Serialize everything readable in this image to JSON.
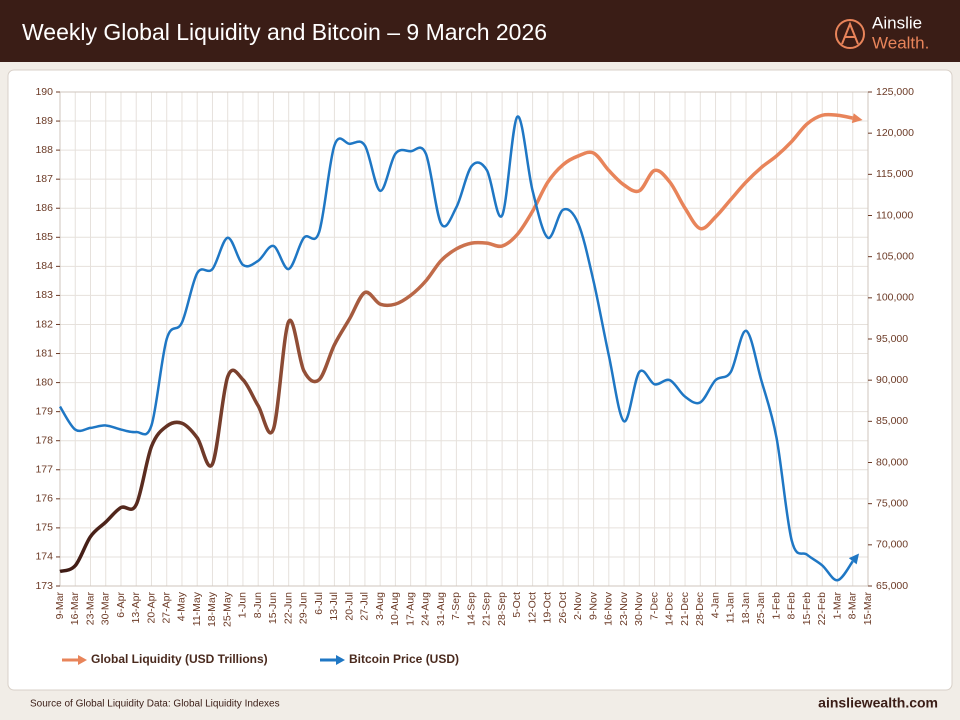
{
  "header": {
    "title": "Weekly Global Liquidity and Bitcoin – 9 March 2026",
    "logo_top": "Ainslie",
    "logo_bottom": "Wealth."
  },
  "footer": {
    "source": "Source of Global Liquidity Data: Global Liquidity Indexes",
    "site": "ainsliewealth.com"
  },
  "chart_data": {
    "type": "line",
    "categories": [
      "9-Mar",
      "16-Mar",
      "23-Mar",
      "30-Mar",
      "6-Apr",
      "13-Apr",
      "20-Apr",
      "27-Apr",
      "4-May",
      "11-May",
      "18-May",
      "25-May",
      "1-Jun",
      "8-Jun",
      "15-Jun",
      "22-Jun",
      "29-Jun",
      "6-Jul",
      "13-Jul",
      "20-Jul",
      "27-Jul",
      "3-Aug",
      "10-Aug",
      "17-Aug",
      "24-Aug",
      "31-Aug",
      "7-Sep",
      "14-Sep",
      "21-Sep",
      "28-Sep",
      "5-Oct",
      "12-Oct",
      "19-Oct",
      "26-Oct",
      "2-Nov",
      "9-Nov",
      "16-Nov",
      "23-Nov",
      "30-Nov",
      "7-Dec",
      "14-Dec",
      "21-Dec",
      "28-Dec",
      "4-Jan",
      "11-Jan",
      "18-Jan",
      "25-Jan",
      "1-Feb",
      "8-Feb",
      "15-Feb",
      "22-Feb",
      "1-Mar",
      "8-Mar",
      "15-Mar"
    ],
    "series": [
      {
        "name": "Global Liquidity (USD Trillions)",
        "color": "#e8845a",
        "start_color": "#3d1a14",
        "axis": "y",
        "values": [
          173.5,
          173.7,
          174.7,
          175.2,
          175.7,
          175.8,
          177.8,
          178.5,
          178.6,
          178.1,
          177.2,
          180.2,
          180.1,
          179.2,
          178.4,
          182.1,
          180.4,
          180.1,
          181.3,
          182.2,
          183.1,
          182.7,
          182.7,
          183.0,
          183.5,
          184.2,
          184.6,
          184.8,
          184.8,
          184.7,
          185.1,
          185.9,
          186.9,
          187.5,
          187.8,
          187.9,
          187.3,
          186.8,
          186.6,
          187.3,
          186.9,
          186.0,
          185.3,
          185.7,
          186.3,
          186.9,
          187.4,
          187.8,
          188.3,
          188.9,
          189.2,
          189.2,
          189.1,
          null
        ]
      },
      {
        "name": "Bitcoin Price (USD)",
        "color": "#1f77c4",
        "axis": "y2",
        "values": [
          86800,
          84000,
          84200,
          84500,
          84000,
          83700,
          84500,
          95000,
          97000,
          103000,
          103500,
          107300,
          104000,
          104500,
          106300,
          103500,
          107300,
          108000,
          118500,
          118700,
          118500,
          113000,
          117500,
          117800,
          117500,
          109000,
          111000,
          116000,
          115500,
          110000,
          122000,
          113000,
          107300,
          110700,
          109000,
          102000,
          93000,
          85000,
          91000,
          89500,
          90000,
          88000,
          87300,
          90000,
          91000,
          96000,
          90000,
          83000,
          70500,
          68800,
          67500,
          65700,
          68000,
          null
        ]
      }
    ],
    "ylim": [
      173,
      190
    ],
    "yticks": [
      173,
      174,
      175,
      176,
      177,
      178,
      179,
      180,
      181,
      182,
      183,
      184,
      185,
      186,
      187,
      188,
      189,
      190
    ],
    "y2lim": [
      65000,
      125000
    ],
    "y2ticks": [
      {
        "value": 65000,
        "label": "65,000"
      },
      {
        "value": 70000,
        "label": "70,000"
      },
      {
        "value": 75000,
        "label": "75,000"
      },
      {
        "value": 80000,
        "label": "80,000"
      },
      {
        "value": 85000,
        "label": "85,000"
      },
      {
        "value": 90000,
        "label": "90,000"
      },
      {
        "value": 95000,
        "label": "95,000"
      },
      {
        "value": 100000,
        "label": "100,000"
      },
      {
        "value": 105000,
        "label": "105,000"
      },
      {
        "value": 110000,
        "label": "110,000"
      },
      {
        "value": 115000,
        "label": "115,000"
      },
      {
        "value": 120000,
        "label": "120,000"
      },
      {
        "value": 125000,
        "label": "125,000"
      }
    ],
    "grid": true
  }
}
